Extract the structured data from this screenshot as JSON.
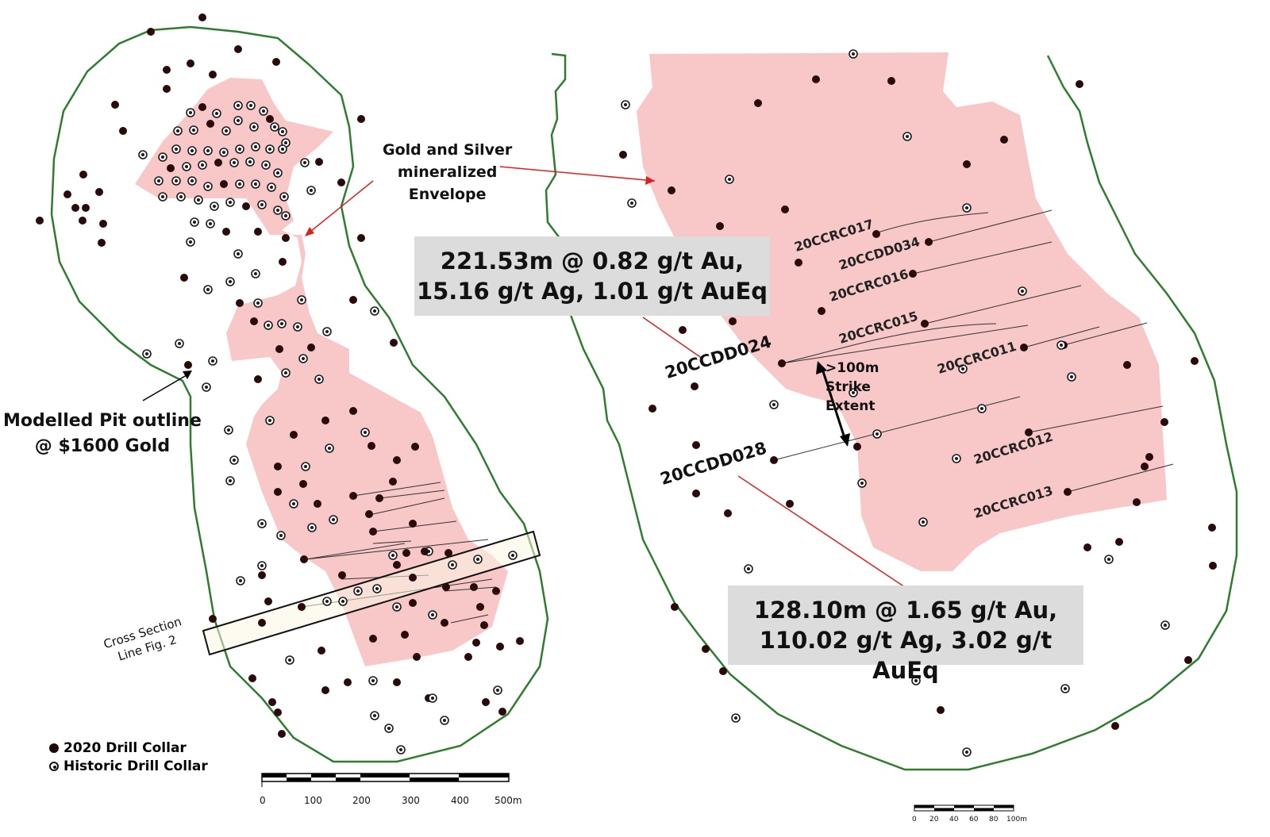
{
  "annotations": {
    "envelope_label": [
      "Gold and Silver",
      "mineralized",
      "Envelope"
    ],
    "pit_label": [
      "Modelled Pit outline",
      "@ $1600 Gold"
    ],
    "cross_section_label": [
      "Cross Section",
      "Line Fig. 2"
    ],
    "strike_label": [
      ">100m",
      "Strike",
      "Extent"
    ]
  },
  "callouts": {
    "upper": [
      "221.53m @ 0.82 g/t Au,",
      "15.16 g/t Ag, 1.01 g/t AuEq"
    ],
    "lower": [
      "128.10m @ 1.65 g/t Au,",
      "110.02 g/t Ag, 3.02 g/t AuEq"
    ]
  },
  "drill_holes": {
    "20CCRC017": "20CCRC017",
    "20CCDD034": "20CCDD034",
    "20CCRC016": "20CCRC016",
    "20CCRC015": "20CCRC015",
    "20CCRC011": "20CCRC011",
    "20CCRC012": "20CCRC012",
    "20CCRC013": "20CCRC013",
    "20CCDD024": "20CCDD024",
    "20CCDD028": "20CCDD028"
  },
  "legend": {
    "drill_2020": "2020 Drill Collar",
    "historic": "Historic Drill Collar"
  },
  "scalebar_left": {
    "ticks": [
      "0",
      "100",
      "200",
      "300",
      "400",
      "500m"
    ]
  },
  "scalebar_right": {
    "ticks": [
      "0",
      "20",
      "40",
      "60",
      "80",
      "100m"
    ]
  },
  "colors": {
    "envelope_fill": "#f8c8c8",
    "pit_outline": "#2e7d2e",
    "leader_red": "#e02020",
    "collar": "#2a0a0a",
    "callout_bg": "#dcdcdc"
  }
}
